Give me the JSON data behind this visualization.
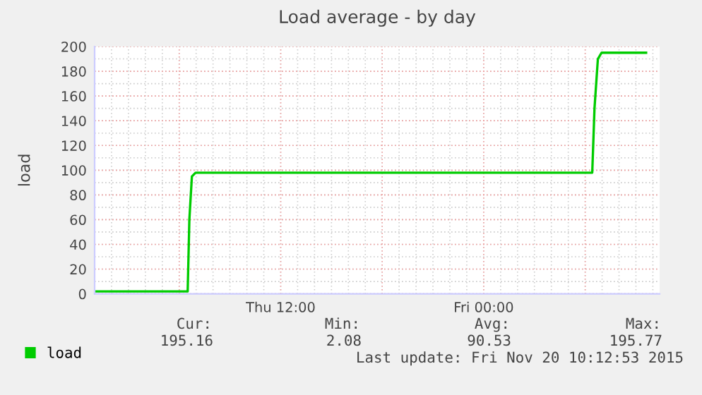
{
  "chart_data": {
    "type": "line",
    "title": "Load average - by day",
    "ylabel": "load",
    "series": [
      {
        "name": "load",
        "color": "#00cc00",
        "x": [
          "2015-11-19T01:00",
          "2015-11-19T06:30",
          "2015-11-19T06:36",
          "2015-11-19T06:45",
          "2015-11-19T06:58",
          "2015-11-20T06:25",
          "2015-11-20T06:33",
          "2015-11-20T06:45",
          "2015-11-20T06:58",
          "2015-11-20T09:36"
        ],
        "values": [
          2,
          2,
          60,
          95,
          98,
          98,
          150,
          190,
          195,
          195
        ]
      }
    ],
    "xlim": [
      "2015-11-19T01:00",
      "2015-11-20T10:24"
    ],
    "xticks": [
      {
        "value": "2015-11-19T06:00",
        "label": null
      },
      {
        "value": "2015-11-19T12:00",
        "label": "Thu 12:00"
      },
      {
        "value": "2015-11-19T18:00",
        "label": null
      },
      {
        "value": "2015-11-20T00:00",
        "label": "Fri 00:00"
      },
      {
        "value": "2015-11-20T06:00",
        "label": null
      }
    ],
    "ylim": [
      0,
      200
    ],
    "yticks": [
      0,
      20,
      40,
      60,
      80,
      100,
      120,
      140,
      160,
      180,
      200
    ],
    "grid": true,
    "legend": "bottom left",
    "marker": "none",
    "line_style": "solid",
    "annotations": [
      "Cur:",
      "Min:",
      "Avg:",
      "Max:",
      "195.16",
      "2.08",
      "90.53",
      "195.77",
      "Last update: Fri Nov 20 10:12:53 2015"
    ]
  }
}
